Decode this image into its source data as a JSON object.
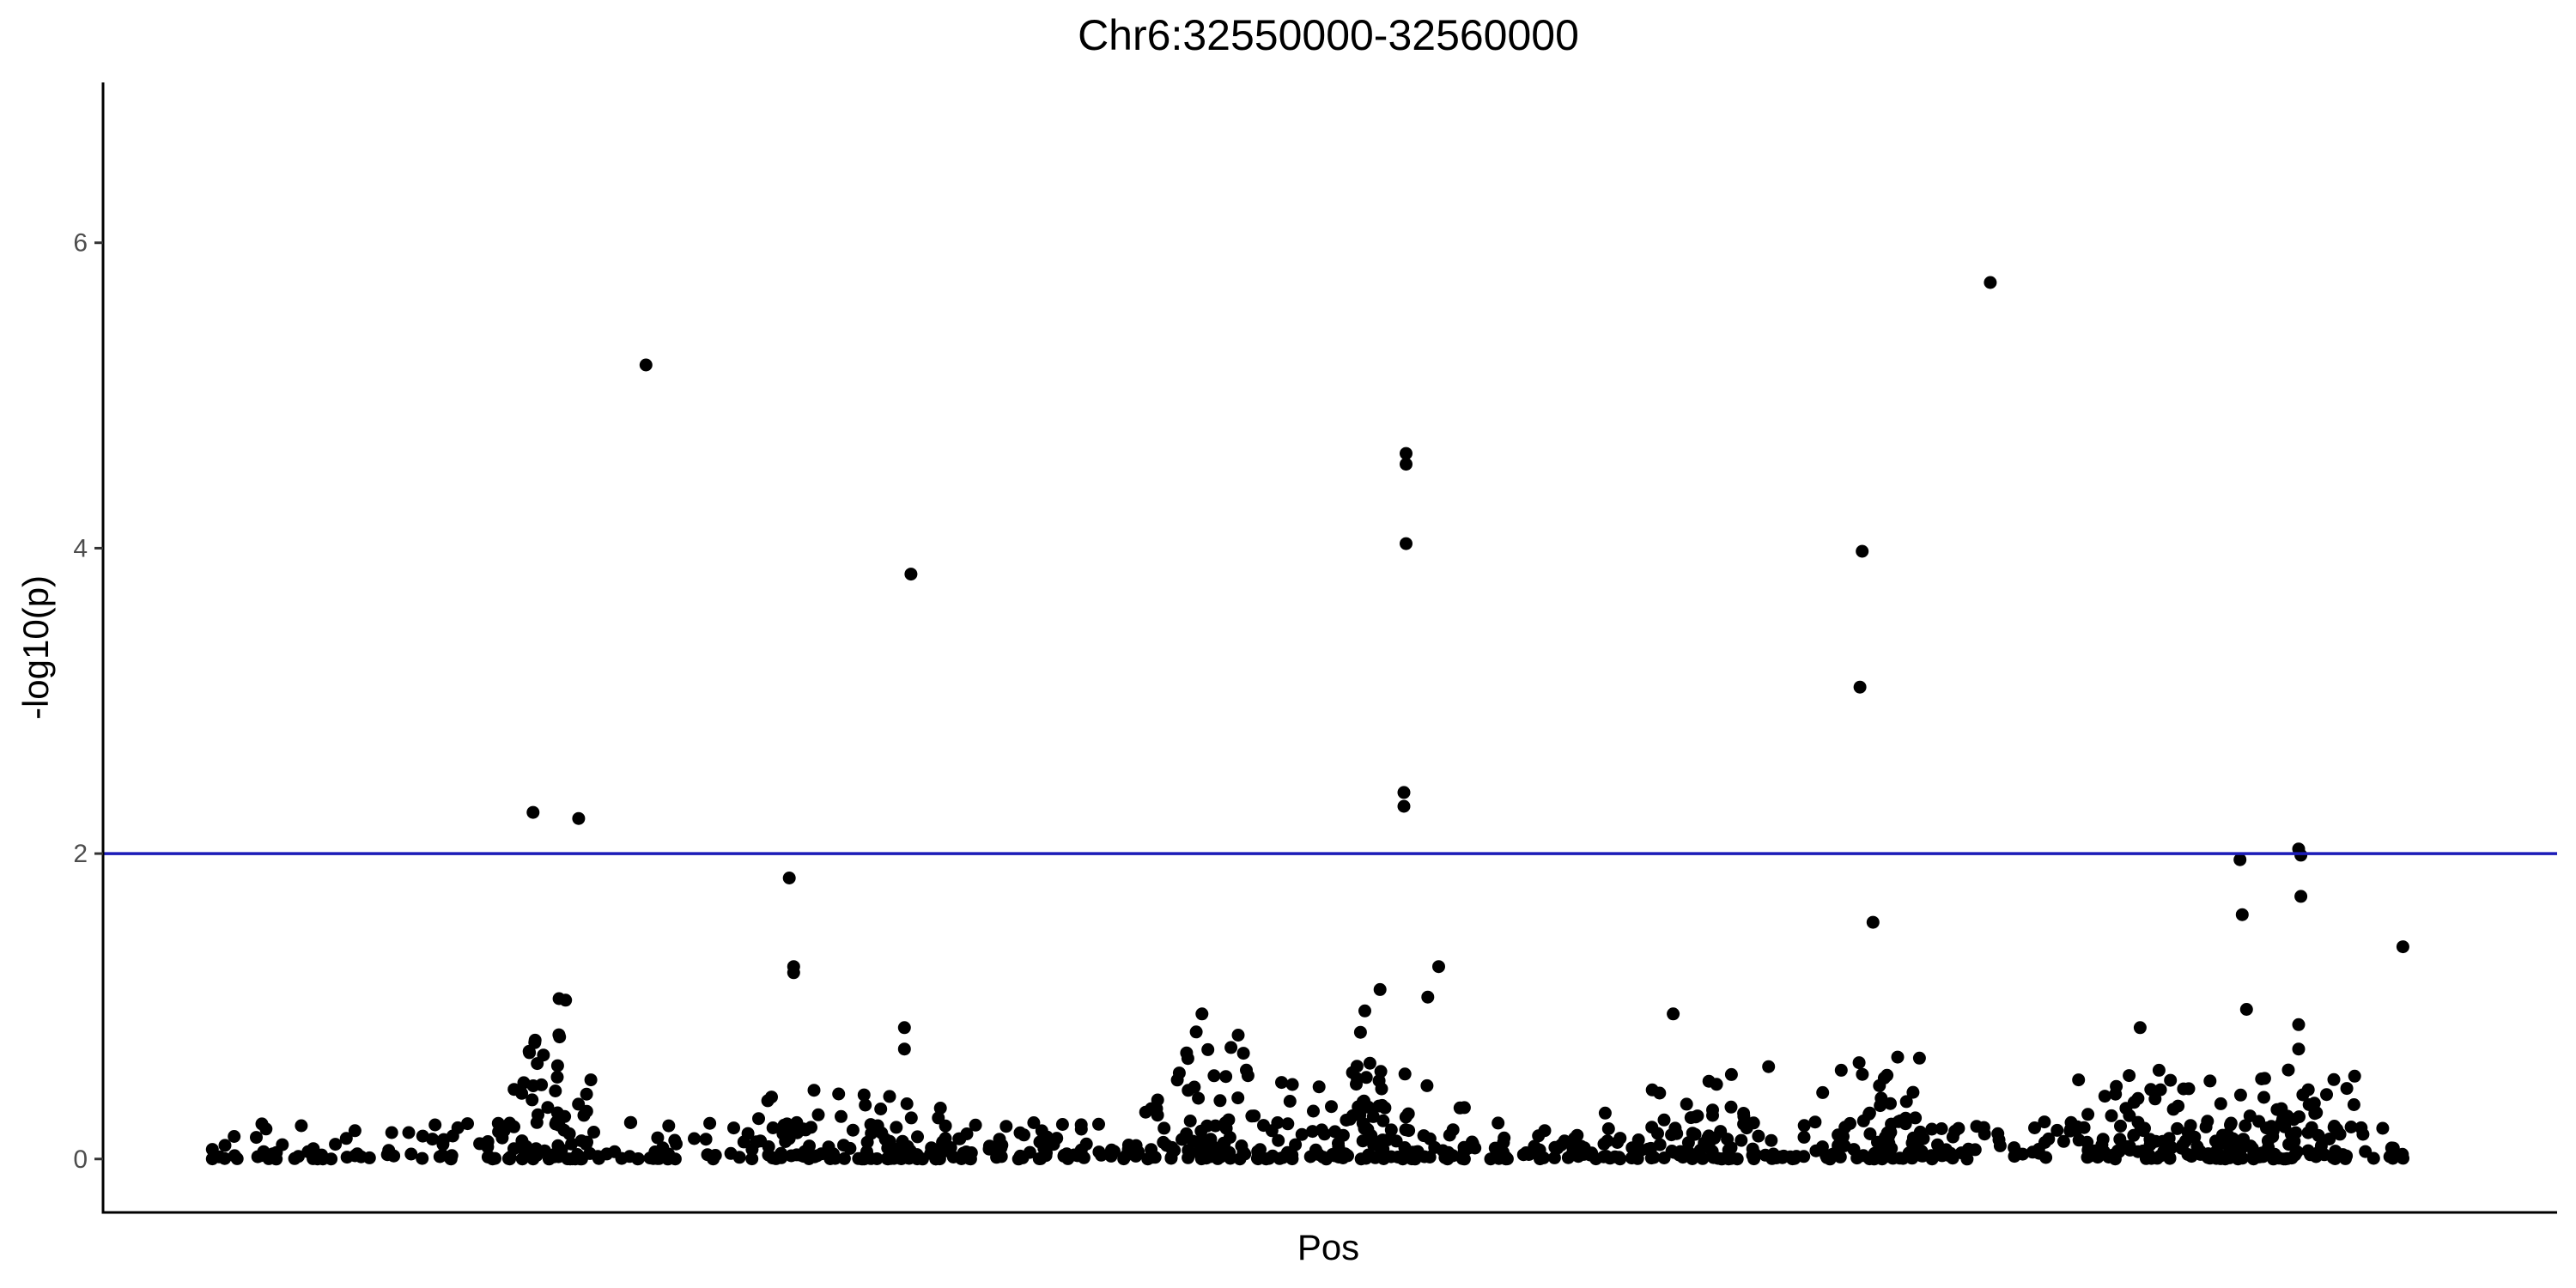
{
  "chart_data": {
    "type": "scatter",
    "title": "Chr6:32550000-32560000",
    "xlabel": "Pos",
    "ylabel": "-log10(p)",
    "ylim": [
      -0.35,
      7.05
    ],
    "yticks": [
      0,
      2,
      4,
      6
    ],
    "ytick_labels": [
      "0",
      "2",
      "4",
      "6"
    ],
    "x_axis_ticks_shown": false,
    "grid": false,
    "legend": "none",
    "point_color": "#000000",
    "threshold": {
      "y": 2,
      "color": "#1c1cb8"
    },
    "highlighted_points": [
      {
        "x": 0.148,
        "y": 2.27
      },
      {
        "x": 0.169,
        "y": 2.23
      },
      {
        "x": 0.2,
        "y": 5.2
      },
      {
        "x": 0.266,
        "y": 1.84
      },
      {
        "x": 0.268,
        "y": 1.26
      },
      {
        "x": 0.268,
        "y": 1.22
      },
      {
        "x": 0.322,
        "y": 3.83
      },
      {
        "x": 0.16,
        "y": 1.05
      },
      {
        "x": 0.163,
        "y": 1.04
      },
      {
        "x": 0.319,
        "y": 0.86
      },
      {
        "x": 0.319,
        "y": 0.72
      },
      {
        "x": 0.456,
        "y": 0.95
      },
      {
        "x": 0.55,
        "y": 4.62
      },
      {
        "x": 0.55,
        "y": 4.55
      },
      {
        "x": 0.55,
        "y": 4.03
      },
      {
        "x": 0.549,
        "y": 2.4
      },
      {
        "x": 0.549,
        "y": 2.31
      },
      {
        "x": 0.565,
        "y": 1.26
      },
      {
        "x": 0.538,
        "y": 1.11
      },
      {
        "x": 0.56,
        "y": 1.06
      },
      {
        "x": 0.531,
        "y": 0.97
      },
      {
        "x": 0.529,
        "y": 0.83
      },
      {
        "x": 0.673,
        "y": 0.95
      },
      {
        "x": 0.76,
        "y": 3.98
      },
      {
        "x": 0.759,
        "y": 3.09
      },
      {
        "x": 0.765,
        "y": 1.55
      },
      {
        "x": 0.819,
        "y": 5.74
      },
      {
        "x": 0.888,
        "y": 0.86
      },
      {
        "x": 0.934,
        "y": 1.96
      },
      {
        "x": 0.935,
        "y": 1.6
      },
      {
        "x": 0.937,
        "y": 0.98
      },
      {
        "x": 0.961,
        "y": 2.03
      },
      {
        "x": 0.962,
        "y": 1.99
      },
      {
        "x": 0.962,
        "y": 1.72
      },
      {
        "x": 0.961,
        "y": 0.88
      },
      {
        "x": 0.961,
        "y": 0.72
      },
      {
        "x": 1.009,
        "y": 1.39
      }
    ],
    "peak_clusters": [
      {
        "center": 0.155,
        "spread": 0.03,
        "count": 50,
        "max": 0.85
      },
      {
        "center": 0.265,
        "spread": 0.028,
        "count": 35,
        "max": 0.47
      },
      {
        "center": 0.32,
        "spread": 0.03,
        "count": 35,
        "max": 0.54
      },
      {
        "center": 0.46,
        "spread": 0.04,
        "count": 60,
        "max": 0.85
      },
      {
        "center": 0.54,
        "spread": 0.05,
        "count": 70,
        "max": 0.65
      },
      {
        "center": 0.68,
        "spread": 0.05,
        "count": 55,
        "max": 0.62
      },
      {
        "center": 0.77,
        "spread": 0.04,
        "count": 55,
        "max": 0.7
      },
      {
        "center": 0.89,
        "spread": 0.05,
        "count": 60,
        "max": 0.6
      },
      {
        "center": 0.955,
        "spread": 0.04,
        "count": 60,
        "max": 0.6
      }
    ],
    "background_points": {
      "count": 560,
      "x_range": [
        0,
        1.01
      ],
      "max": 0.25
    }
  }
}
